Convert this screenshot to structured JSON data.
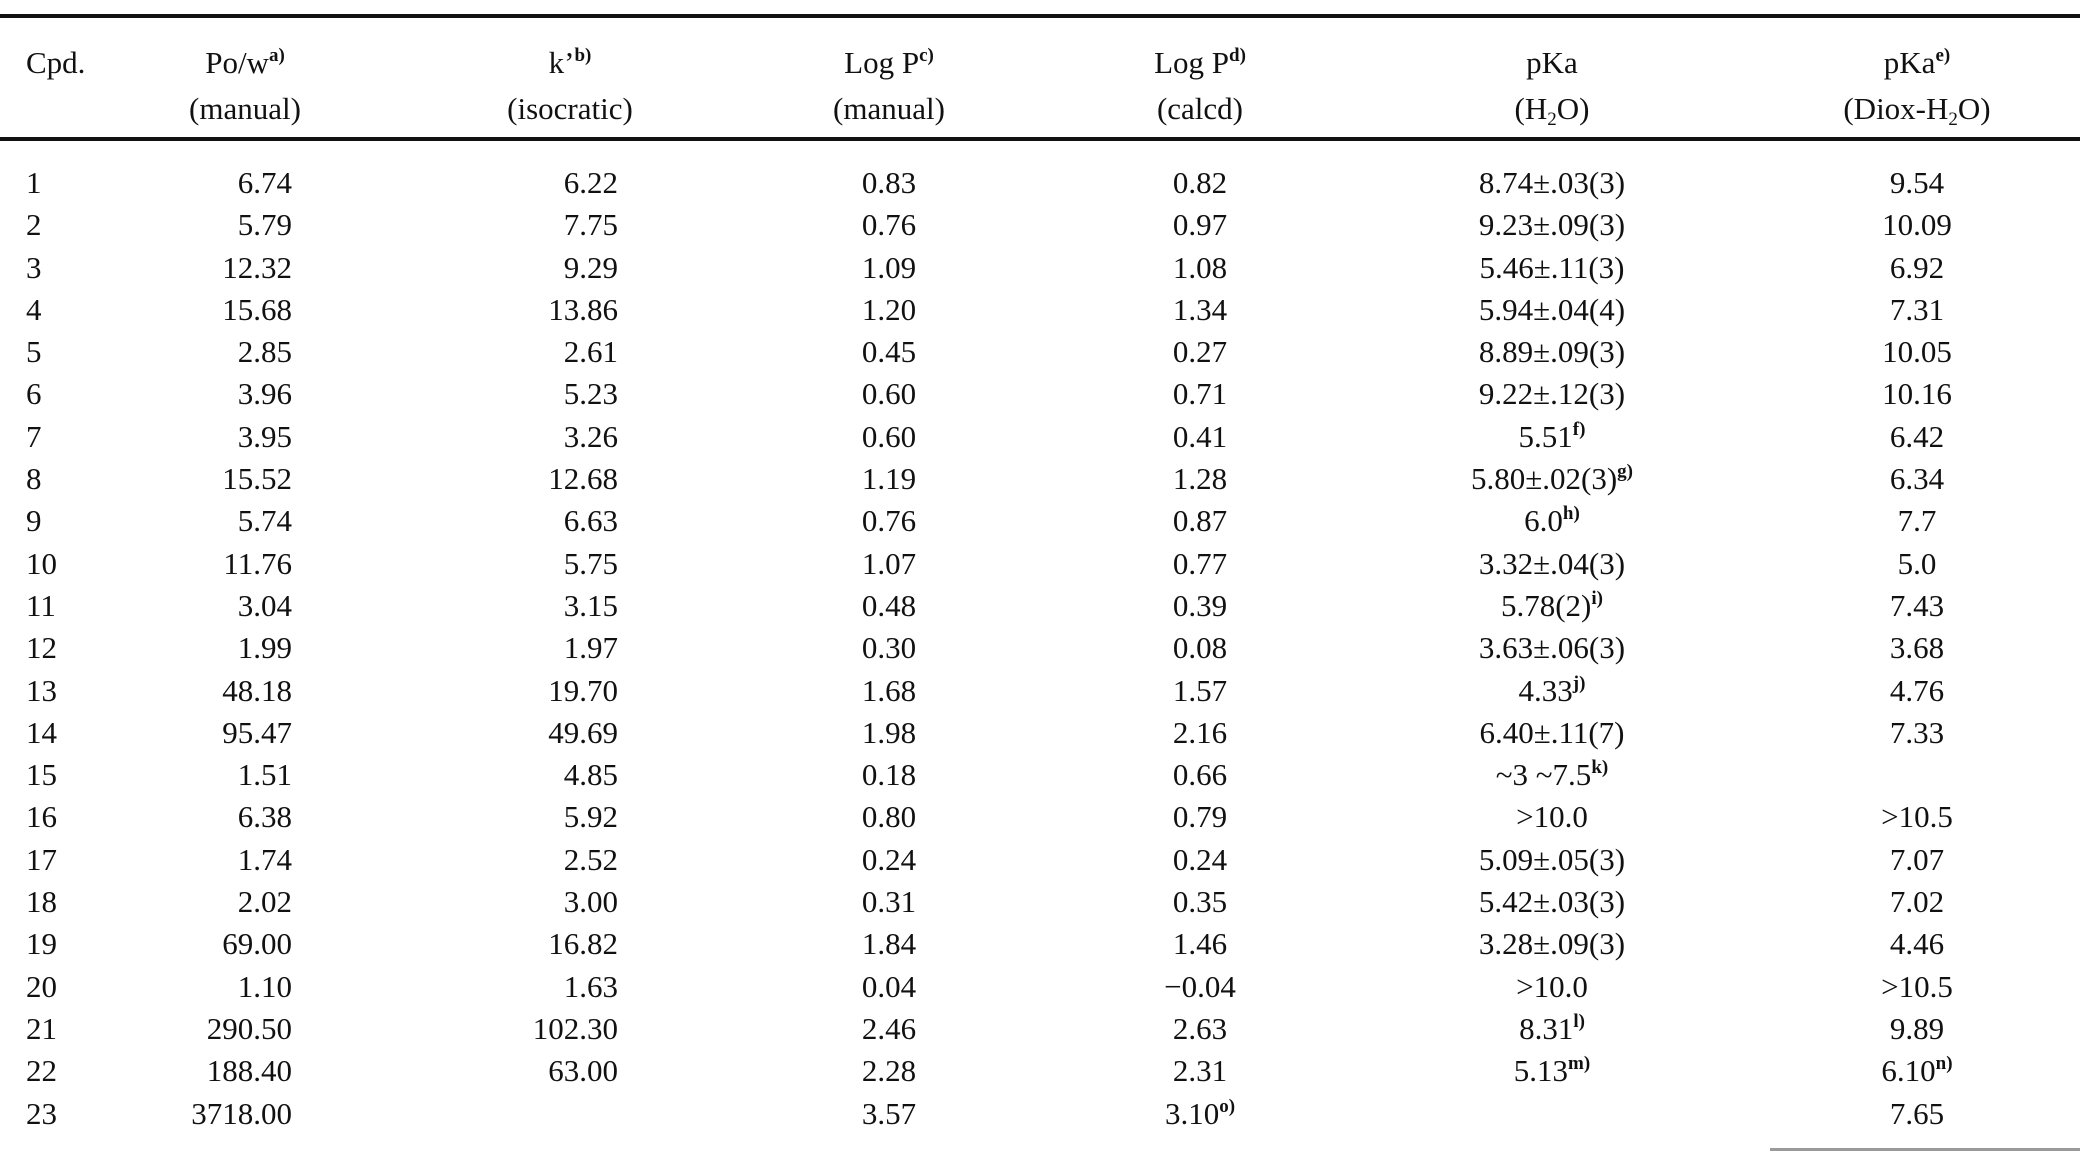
{
  "table": {
    "headers": [
      {
        "key": "cpd",
        "line1": "Cpd.",
        "note": "",
        "line2": ""
      },
      {
        "key": "pow",
        "line1": "Po/w",
        "note": "a)",
        "line2": "(manual)"
      },
      {
        "key": "k",
        "line1": "k’",
        "note": "b)",
        "line2": "(isocratic)"
      },
      {
        "key": "logp_manual",
        "line1": "Log P",
        "note": "c)",
        "line2": "(manual)"
      },
      {
        "key": "logp_calcd",
        "line1": "Log P",
        "note": "d)",
        "line2": "(calcd)"
      },
      {
        "key": "pka_h2o",
        "line1": "pKa",
        "note": "",
        "line2_pre": "(H",
        "line2_sub": "2",
        "line2_post": "O)"
      },
      {
        "key": "pka_diox",
        "line1": "pKa",
        "note": "e)",
        "line2_pre": "(Diox-H",
        "line2_sub": "2",
        "line2_post": "O)"
      }
    ],
    "rows": [
      {
        "cpd": "1",
        "pow": "6.74",
        "k": "6.22",
        "logp_manual": "0.83",
        "logp_calcd": "0.82",
        "logp_calcd_note": "",
        "pka_h2o": "8.74±.03(3)",
        "pka_h2o_note": "",
        "pka_diox": "9.54",
        "pka_diox_note": ""
      },
      {
        "cpd": "2",
        "pow": "5.79",
        "k": "7.75",
        "logp_manual": "0.76",
        "logp_calcd": "0.97",
        "logp_calcd_note": "",
        "pka_h2o": "9.23±.09(3)",
        "pka_h2o_note": "",
        "pka_diox": "10.09",
        "pka_diox_note": ""
      },
      {
        "cpd": "3",
        "pow": "12.32",
        "k": "9.29",
        "logp_manual": "1.09",
        "logp_calcd": "1.08",
        "logp_calcd_note": "",
        "pka_h2o": "5.46±.11(3)",
        "pka_h2o_note": "",
        "pka_diox": "6.92",
        "pka_diox_note": ""
      },
      {
        "cpd": "4",
        "pow": "15.68",
        "k": "13.86",
        "logp_manual": "1.20",
        "logp_calcd": "1.34",
        "logp_calcd_note": "",
        "pka_h2o": "5.94±.04(4)",
        "pka_h2o_note": "",
        "pka_diox": "7.31",
        "pka_diox_note": ""
      },
      {
        "cpd": "5",
        "pow": "2.85",
        "k": "2.61",
        "logp_manual": "0.45",
        "logp_calcd": "0.27",
        "logp_calcd_note": "",
        "pka_h2o": "8.89±.09(3)",
        "pka_h2o_note": "",
        "pka_diox": "10.05",
        "pka_diox_note": ""
      },
      {
        "cpd": "6",
        "pow": "3.96",
        "k": "5.23",
        "logp_manual": "0.60",
        "logp_calcd": "0.71",
        "logp_calcd_note": "",
        "pka_h2o": "9.22±.12(3)",
        "pka_h2o_note": "",
        "pka_diox": "10.16",
        "pka_diox_note": ""
      },
      {
        "cpd": "7",
        "pow": "3.95",
        "k": "3.26",
        "logp_manual": "0.60",
        "logp_calcd": "0.41",
        "logp_calcd_note": "",
        "pka_h2o": "5.51",
        "pka_h2o_note": "f)",
        "pka_diox": "6.42",
        "pka_diox_note": ""
      },
      {
        "cpd": "8",
        "pow": "15.52",
        "k": "12.68",
        "logp_manual": "1.19",
        "logp_calcd": "1.28",
        "logp_calcd_note": "",
        "pka_h2o": "5.80±.02(3)",
        "pka_h2o_note": "g)",
        "pka_diox": "6.34",
        "pka_diox_note": ""
      },
      {
        "cpd": "9",
        "pow": "5.74",
        "k": "6.63",
        "logp_manual": "0.76",
        "logp_calcd": "0.87",
        "logp_calcd_note": "",
        "pka_h2o": "6.0",
        "pka_h2o_note": "h)",
        "pka_diox": "7.7",
        "pka_diox_note": ""
      },
      {
        "cpd": "10",
        "pow": "11.76",
        "k": "5.75",
        "logp_manual": "1.07",
        "logp_calcd": "0.77",
        "logp_calcd_note": "",
        "pka_h2o": "3.32±.04(3)",
        "pka_h2o_note": "",
        "pka_diox": "5.0",
        "pka_diox_note": ""
      },
      {
        "cpd": "11",
        "pow": "3.04",
        "k": "3.15",
        "logp_manual": "0.48",
        "logp_calcd": "0.39",
        "logp_calcd_note": "",
        "pka_h2o": "5.78(2)",
        "pka_h2o_note": "i)",
        "pka_diox": "7.43",
        "pka_diox_note": ""
      },
      {
        "cpd": "12",
        "pow": "1.99",
        "k": "1.97",
        "logp_manual": "0.30",
        "logp_calcd": "0.08",
        "logp_calcd_note": "",
        "pka_h2o": "3.63±.06(3)",
        "pka_h2o_note": "",
        "pka_diox": "3.68",
        "pka_diox_note": ""
      },
      {
        "cpd": "13",
        "pow": "48.18",
        "k": "19.70",
        "logp_manual": "1.68",
        "logp_calcd": "1.57",
        "logp_calcd_note": "",
        "pka_h2o": "4.33",
        "pka_h2o_note": "j)",
        "pka_diox": "4.76",
        "pka_diox_note": ""
      },
      {
        "cpd": "14",
        "pow": "95.47",
        "k": "49.69",
        "logp_manual": "1.98",
        "logp_calcd": "2.16",
        "logp_calcd_note": "",
        "pka_h2o": "6.40±.11(7)",
        "pka_h2o_note": "",
        "pka_diox": "7.33",
        "pka_diox_note": ""
      },
      {
        "cpd": "15",
        "pow": "1.51",
        "k": "4.85",
        "logp_manual": "0.18",
        "logp_calcd": "0.66",
        "logp_calcd_note": "",
        "pka_h2o": "~3  ~7.5",
        "pka_h2o_note": "k)",
        "pka_diox": "",
        "pka_diox_note": ""
      },
      {
        "cpd": "16",
        "pow": "6.38",
        "k": "5.92",
        "logp_manual": "0.80",
        "logp_calcd": "0.79",
        "logp_calcd_note": "",
        "pka_h2o": ">10.0",
        "pka_h2o_note": "",
        "pka_diox": ">10.5",
        "pka_diox_note": ""
      },
      {
        "cpd": "17",
        "pow": "1.74",
        "k": "2.52",
        "logp_manual": "0.24",
        "logp_calcd": "0.24",
        "logp_calcd_note": "",
        "pka_h2o": "5.09±.05(3)",
        "pka_h2o_note": "",
        "pka_diox": "7.07",
        "pka_diox_note": ""
      },
      {
        "cpd": "18",
        "pow": "2.02",
        "k": "3.00",
        "logp_manual": "0.31",
        "logp_calcd": "0.35",
        "logp_calcd_note": "",
        "pka_h2o": "5.42±.03(3)",
        "pka_h2o_note": "",
        "pka_diox": "7.02",
        "pka_diox_note": ""
      },
      {
        "cpd": "19",
        "pow": "69.00",
        "k": "16.82",
        "logp_manual": "1.84",
        "logp_calcd": "1.46",
        "logp_calcd_note": "",
        "pka_h2o": "3.28±.09(3)",
        "pka_h2o_note": "",
        "pka_diox": "4.46",
        "pka_diox_note": ""
      },
      {
        "cpd": "20",
        "pow": "1.10",
        "k": "1.63",
        "logp_manual": "0.04",
        "logp_calcd": "−0.04",
        "logp_calcd_note": "",
        "pka_h2o": ">10.0",
        "pka_h2o_note": "",
        "pka_diox": ">10.5",
        "pka_diox_note": ""
      },
      {
        "cpd": "21",
        "pow": "290.50",
        "k": "102.30",
        "logp_manual": "2.46",
        "logp_calcd": "2.63",
        "logp_calcd_note": "",
        "pka_h2o": "8.31",
        "pka_h2o_note": "l)",
        "pka_diox": "9.89",
        "pka_diox_note": ""
      },
      {
        "cpd": "22",
        "pow": "188.40",
        "k": "63.00",
        "logp_manual": "2.28",
        "logp_calcd": "2.31",
        "logp_calcd_note": "",
        "pka_h2o": "5.13",
        "pka_h2o_note": "m)",
        "pka_diox": "6.10",
        "pka_diox_note": "n)"
      },
      {
        "cpd": "23",
        "pow": "3718.00",
        "k": "",
        "logp_manual": "3.57",
        "logp_calcd": "3.10",
        "logp_calcd_note": "o)",
        "pka_h2o": "",
        "pka_h2o_note": "",
        "pka_diox": "7.65",
        "pka_diox_note": ""
      }
    ]
  }
}
